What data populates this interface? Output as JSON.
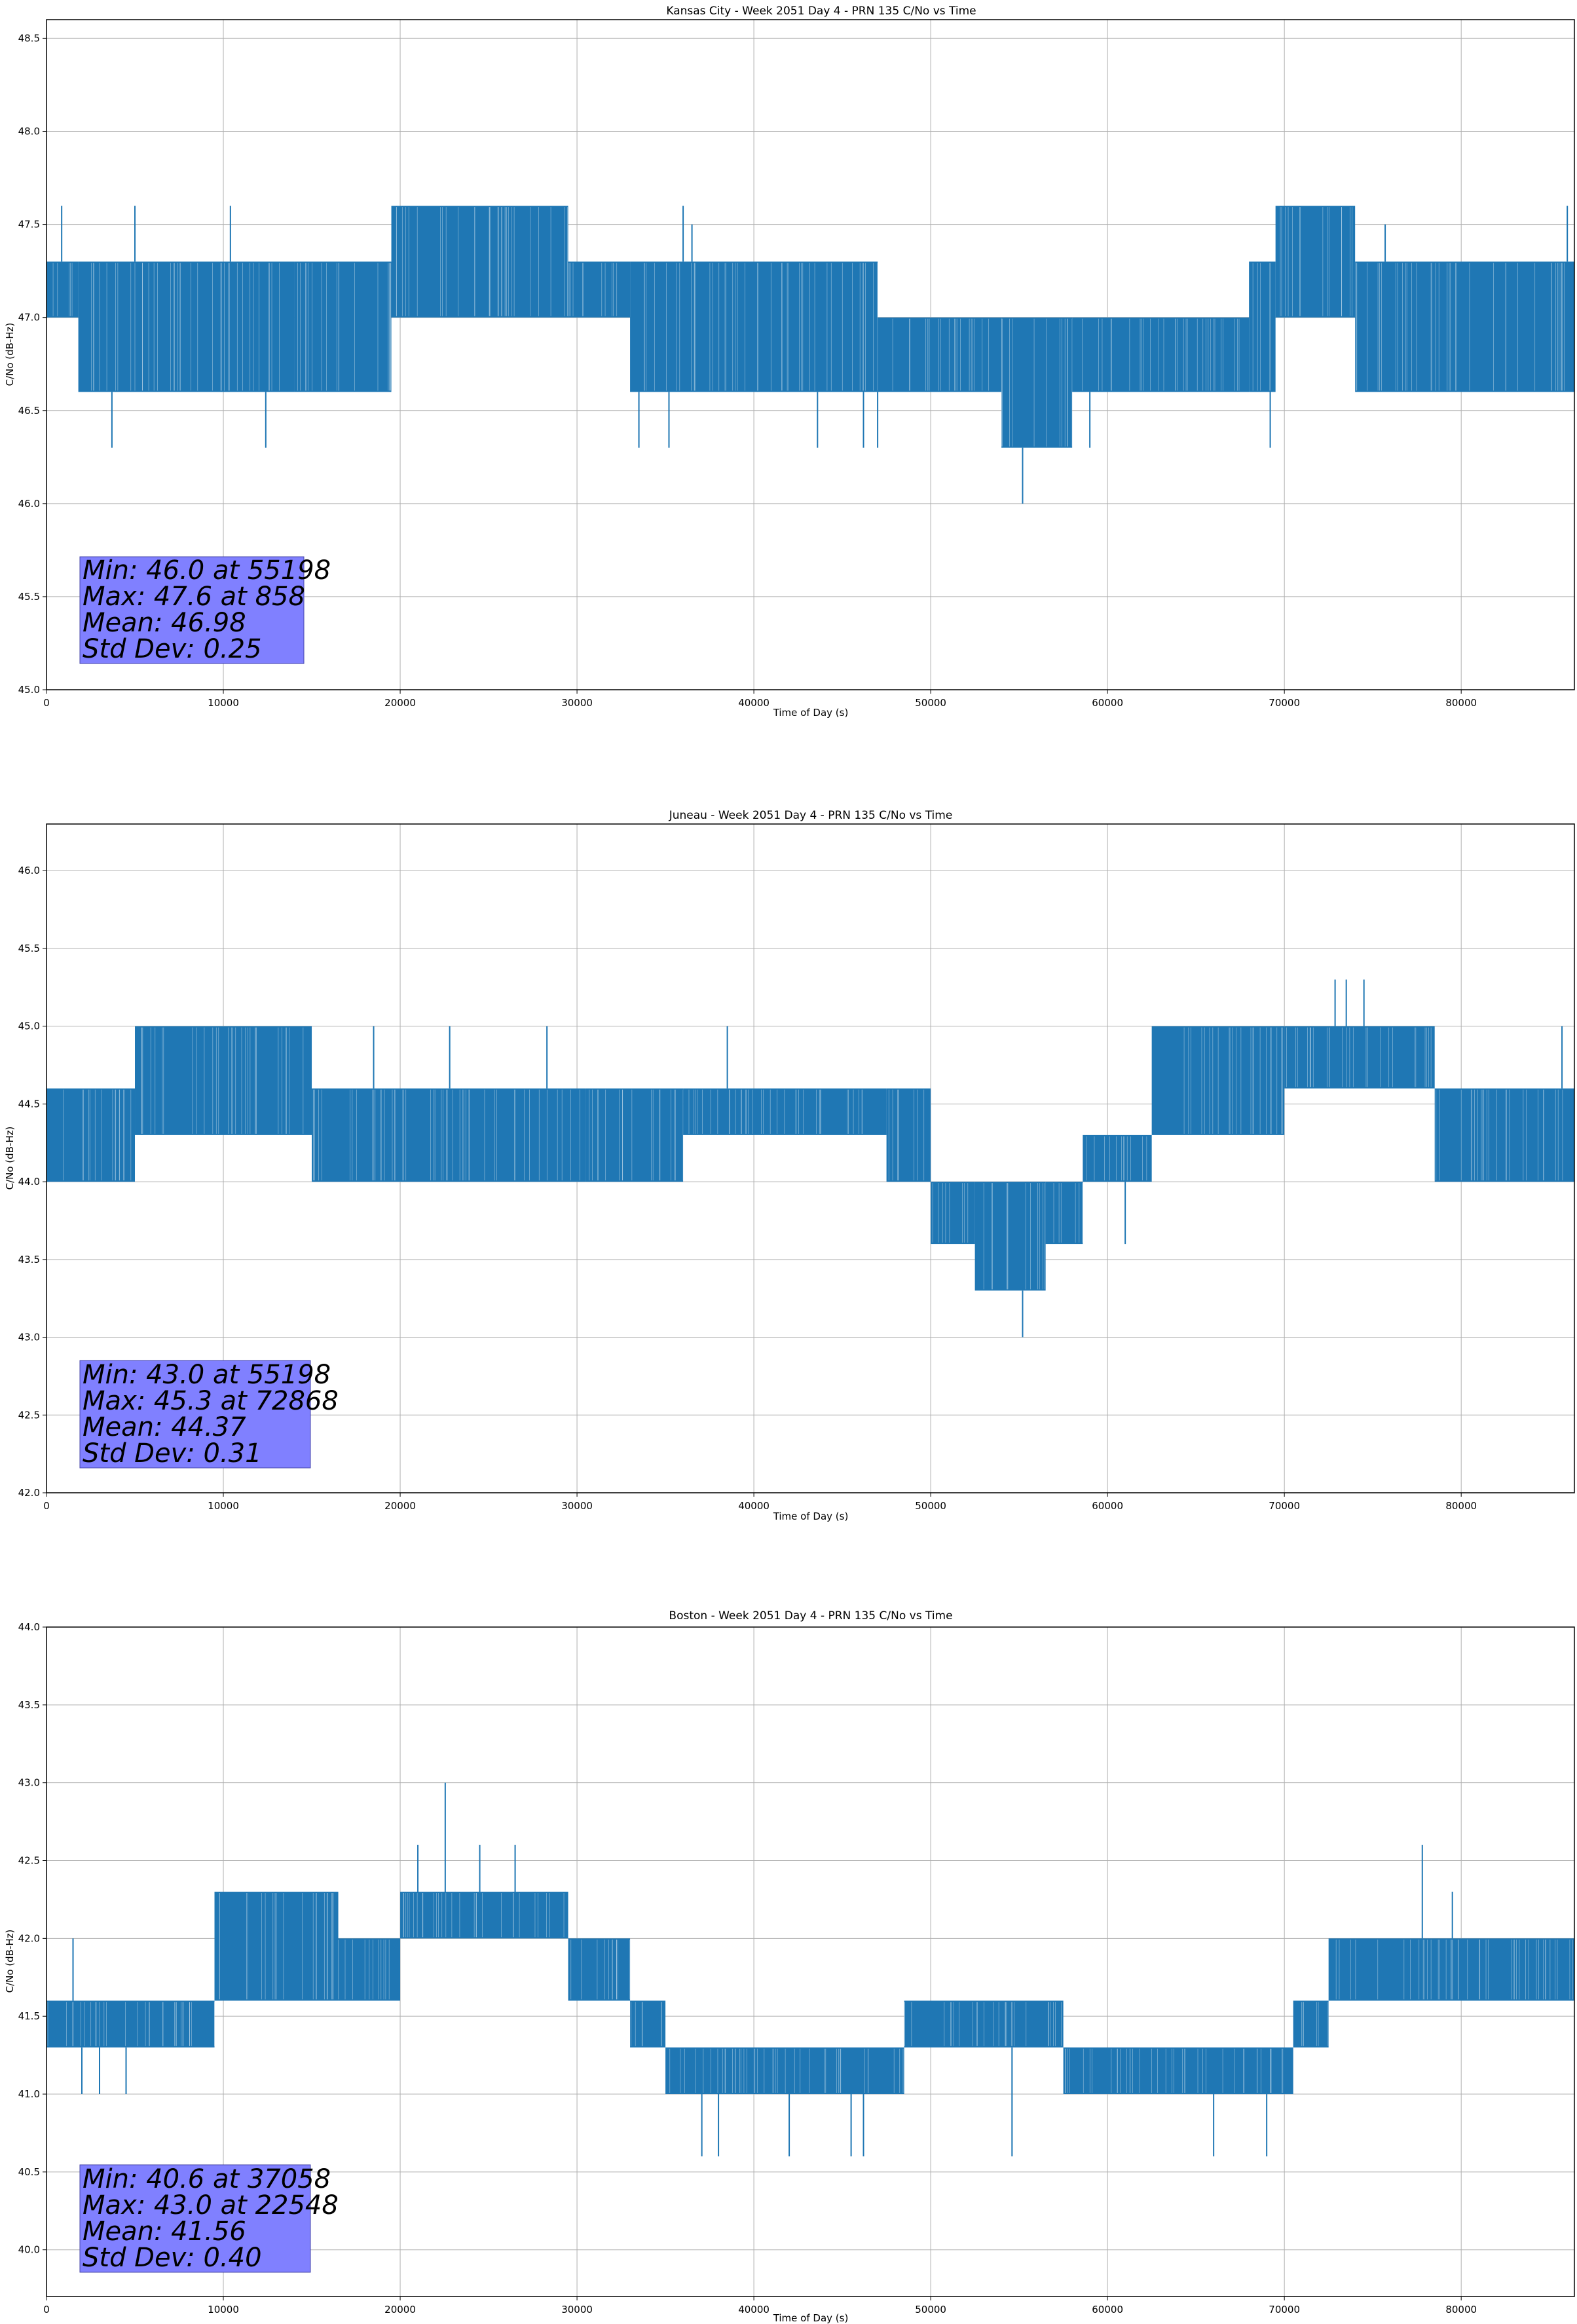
{
  "colors": {
    "series": "#1f77b4",
    "stats_box": "#8080ff",
    "grid": "#b0b0b0"
  },
  "x_ticks": [
    "0",
    "10000",
    "20000",
    "30000",
    "40000",
    "50000",
    "60000",
    "70000",
    "80000"
  ],
  "chart_data": [
    {
      "type": "line",
      "title": "Kansas City - Week 2051 Day 4 - PRN 135 C/No vs Time",
      "xlabel": "Time of Day (s)",
      "ylabel": "C/No (dB-Hz)",
      "xlim": [
        0,
        86400
      ],
      "ylim": [
        45.0,
        48.6
      ],
      "yticks": [
        "45.0",
        "45.5",
        "46.0",
        "46.5",
        "47.0",
        "47.5",
        "48.0",
        "48.5"
      ],
      "grid": true,
      "stats": [
        "Min: 46.0 at 55198",
        "Max: 47.6 at 858",
        "Mean: 46.98",
        "Std Dev: 0.25"
      ],
      "series": [
        {
          "bands": [
            {
              "x": [
                0,
                1800
              ],
              "low": 47.0,
              "high": 47.3
            },
            {
              "x": [
                1800,
                14000
              ],
              "low": 46.6,
              "high": 47.3
            },
            {
              "x": [
                14000,
                19500
              ],
              "low": 46.6,
              "high": 47.3
            },
            {
              "x": [
                19500,
                29500
              ],
              "low": 47.0,
              "high": 47.6
            },
            {
              "x": [
                29500,
                33000
              ],
              "low": 47.0,
              "high": 47.3
            },
            {
              "x": [
                33000,
                47000
              ],
              "low": 46.6,
              "high": 47.3
            },
            {
              "x": [
                47000,
                54000
              ],
              "low": 46.6,
              "high": 47.0
            },
            {
              "x": [
                54000,
                58000
              ],
              "low": 46.3,
              "high": 47.0
            },
            {
              "x": [
                58000,
                68000
              ],
              "low": 46.6,
              "high": 47.0
            },
            {
              "x": [
                68000,
                69500
              ],
              "low": 46.6,
              "high": 47.3
            },
            {
              "x": [
                69500,
                74000
              ],
              "low": 47.0,
              "high": 47.6
            },
            {
              "x": [
                74000,
                86400
              ],
              "low": 46.6,
              "high": 47.3
            }
          ],
          "spikes": [
            {
              "x": 858,
              "y": 47.6
            },
            {
              "x": 3700,
              "y": 46.3
            },
            {
              "x": 5000,
              "y": 47.6
            },
            {
              "x": 10400,
              "y": 47.6
            },
            {
              "x": 12400,
              "y": 46.3
            },
            {
              "x": 36000,
              "y": 47.6
            },
            {
              "x": 36500,
              "y": 47.5
            },
            {
              "x": 33500,
              "y": 46.3
            },
            {
              "x": 35200,
              "y": 46.3
            },
            {
              "x": 43600,
              "y": 46.3
            },
            {
              "x": 46200,
              "y": 46.3
            },
            {
              "x": 47000,
              "y": 46.3
            },
            {
              "x": 55198,
              "y": 46.0
            },
            {
              "x": 56700,
              "y": 46.3
            },
            {
              "x": 59000,
              "y": 46.3
            },
            {
              "x": 69200,
              "y": 46.3
            },
            {
              "x": 75700,
              "y": 47.5
            },
            {
              "x": 86000,
              "y": 47.6
            }
          ]
        }
      ]
    },
    {
      "type": "line",
      "title": "Juneau - Week 2051 Day 4 - PRN 135 C/No vs Time",
      "xlabel": "Time of Day (s)",
      "ylabel": "C/No (dB-Hz)",
      "xlim": [
        0,
        86400
      ],
      "ylim": [
        42.0,
        46.3
      ],
      "yticks": [
        "42.0",
        "42.5",
        "43.0",
        "43.5",
        "44.0",
        "44.5",
        "45.0",
        "45.5",
        "46.0"
      ],
      "grid": true,
      "stats": [
        "Min: 43.0 at 55198",
        "Max: 45.3 at 72868",
        "Mean: 44.37",
        "Std Dev: 0.31"
      ],
      "series": [
        {
          "bands": [
            {
              "x": [
                0,
                5000
              ],
              "low": 44.0,
              "high": 44.6
            },
            {
              "x": [
                5000,
                15000
              ],
              "low": 44.3,
              "high": 45.0
            },
            {
              "x": [
                15000,
                30500
              ],
              "low": 44.0,
              "high": 44.6
            },
            {
              "x": [
                30500,
                36000
              ],
              "low": 44.0,
              "high": 44.6
            },
            {
              "x": [
                36000,
                47500
              ],
              "low": 44.3,
              "high": 44.6
            },
            {
              "x": [
                47500,
                50000
              ],
              "low": 44.0,
              "high": 44.6
            },
            {
              "x": [
                50000,
                52500
              ],
              "low": 43.6,
              "high": 44.0
            },
            {
              "x": [
                52500,
                56500
              ],
              "low": 43.3,
              "high": 44.0
            },
            {
              "x": [
                56500,
                58600
              ],
              "low": 43.6,
              "high": 44.0
            },
            {
              "x": [
                58600,
                62500
              ],
              "low": 44.0,
              "high": 44.3
            },
            {
              "x": [
                62500,
                70000
              ],
              "low": 44.3,
              "high": 45.0
            },
            {
              "x": [
                70000,
                78500
              ],
              "low": 44.6,
              "high": 45.0
            },
            {
              "x": [
                78500,
                86400
              ],
              "low": 44.0,
              "high": 44.6
            }
          ],
          "spikes": [
            {
              "x": 18500,
              "y": 45.0
            },
            {
              "x": 22800,
              "y": 45.0
            },
            {
              "x": 28300,
              "y": 45.0
            },
            {
              "x": 38500,
              "y": 45.0
            },
            {
              "x": 55198,
              "y": 43.0
            },
            {
              "x": 61000,
              "y": 43.6
            },
            {
              "x": 72868,
              "y": 45.3
            },
            {
              "x": 73500,
              "y": 45.3
            },
            {
              "x": 74500,
              "y": 45.3
            },
            {
              "x": 85700,
              "y": 45.0
            }
          ]
        }
      ]
    },
    {
      "type": "line",
      "title": "Boston - Week 2051 Day 4 - PRN 135 C/No vs Time",
      "xlabel": "Time of Day (s)",
      "ylabel": "C/No (dB-Hz)",
      "xlim": [
        0,
        86400
      ],
      "ylim": [
        39.7,
        44.0
      ],
      "yticks": [
        "40.0",
        "40.5",
        "41.0",
        "41.5",
        "42.0",
        "42.5",
        "43.0",
        "43.5",
        "44.0"
      ],
      "grid": true,
      "stats": [
        "Min: 40.6 at 37058",
        "Max: 43.0 at 22548",
        "Mean: 41.56",
        "Std Dev: 0.40"
      ],
      "series": [
        {
          "bands": [
            {
              "x": [
                0,
                9500
              ],
              "low": 41.3,
              "high": 41.6
            },
            {
              "x": [
                9500,
                16500
              ],
              "low": 41.6,
              "high": 42.3
            },
            {
              "x": [
                16500,
                20000
              ],
              "low": 41.6,
              "high": 42.0
            },
            {
              "x": [
                20000,
                29500
              ],
              "low": 42.0,
              "high": 42.3
            },
            {
              "x": [
                29500,
                33000
              ],
              "low": 41.6,
              "high": 42.0
            },
            {
              "x": [
                33000,
                35000
              ],
              "low": 41.3,
              "high": 41.6
            },
            {
              "x": [
                35000,
                48500
              ],
              "low": 41.0,
              "high": 41.3
            },
            {
              "x": [
                48500,
                57500
              ],
              "low": 41.3,
              "high": 41.6
            },
            {
              "x": [
                57500,
                70500
              ],
              "low": 41.0,
              "high": 41.3
            },
            {
              "x": [
                70500,
                72500
              ],
              "low": 41.3,
              "high": 41.6
            },
            {
              "x": [
                72500,
                86400
              ],
              "low": 41.6,
              "high": 42.0
            }
          ],
          "spikes": [
            {
              "x": 1500,
              "y": 42.0
            },
            {
              "x": 2000,
              "y": 41.0
            },
            {
              "x": 3000,
              "y": 41.0
            },
            {
              "x": 4500,
              "y": 41.0
            },
            {
              "x": 22548,
              "y": 43.0
            },
            {
              "x": 21000,
              "y": 42.6
            },
            {
              "x": 24500,
              "y": 42.6
            },
            {
              "x": 26500,
              "y": 42.6
            },
            {
              "x": 37058,
              "y": 40.6
            },
            {
              "x": 38000,
              "y": 40.6
            },
            {
              "x": 42000,
              "y": 40.6
            },
            {
              "x": 45500,
              "y": 40.6
            },
            {
              "x": 46200,
              "y": 40.6
            },
            {
              "x": 54600,
              "y": 40.6
            },
            {
              "x": 66000,
              "y": 40.6
            },
            {
              "x": 69000,
              "y": 40.6
            },
            {
              "x": 77800,
              "y": 42.6
            },
            {
              "x": 79500,
              "y": 42.3
            }
          ]
        }
      ]
    }
  ]
}
